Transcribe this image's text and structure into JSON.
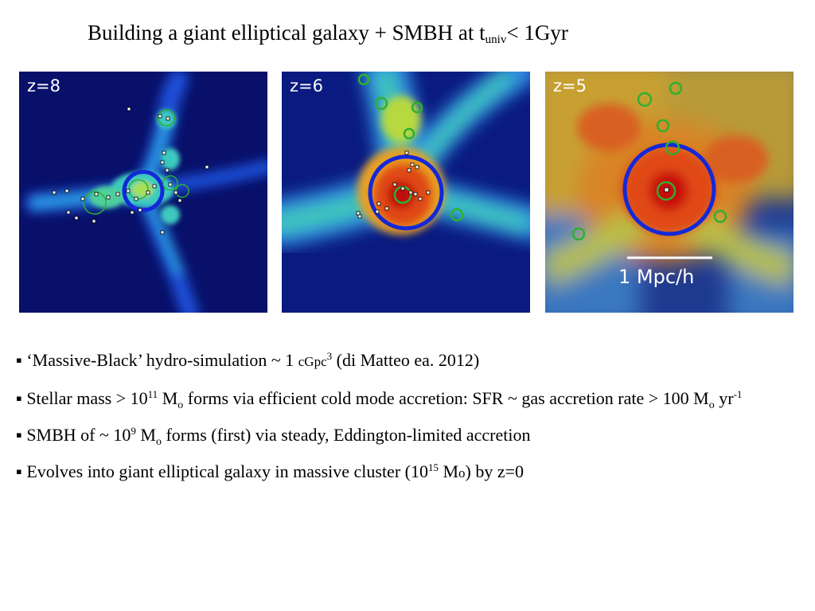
{
  "title": {
    "main": "Building a giant elliptical galaxy + SMBH at t",
    "sub": "univ",
    "end": "< 1Gyr"
  },
  "panels": [
    {
      "label": "z=8"
    },
    {
      "label": "z=6"
    },
    {
      "label": "z=5",
      "scale_label": "1 Mpc/h"
    }
  ],
  "bullets": {
    "b1": {
      "marker": "▪",
      "text_a": "‘Massive-Black’ hydro-simulation ~  1 ",
      "unit": "cGpc",
      "unit_exp": "3",
      "text_b": "  (di Matteo ea. 2012)"
    },
    "b2": {
      "marker": "▪",
      "text_a": "Stellar mass > 10",
      "exp1": "11",
      "text_b": " M",
      "sub1": "o",
      "text_c": " forms via efficient cold mode accretion: SFR ~ gas accretion rate > 100 M",
      "sub2": "o",
      "text_d": " yr",
      "exp2": "-1"
    },
    "b3": {
      "marker": "▪",
      "text_a": "SMBH  of ~ 10",
      "exp1": "9",
      "text_b": " M",
      "sub1": "o",
      "text_c": " forms (first) via steady, Eddington-limited accretion"
    },
    "b4": {
      "marker": "▪",
      "text_a": "Evolves into giant elliptical galaxy in massive cluster (10",
      "exp1": "15",
      "text_b": " M",
      "sub1": "o",
      "text_c": ") by z=0"
    }
  },
  "colors": {
    "halo_circle": "#1428d8",
    "subhalo_circle": "#2fb02f",
    "bh_marker": "#ffffff"
  }
}
